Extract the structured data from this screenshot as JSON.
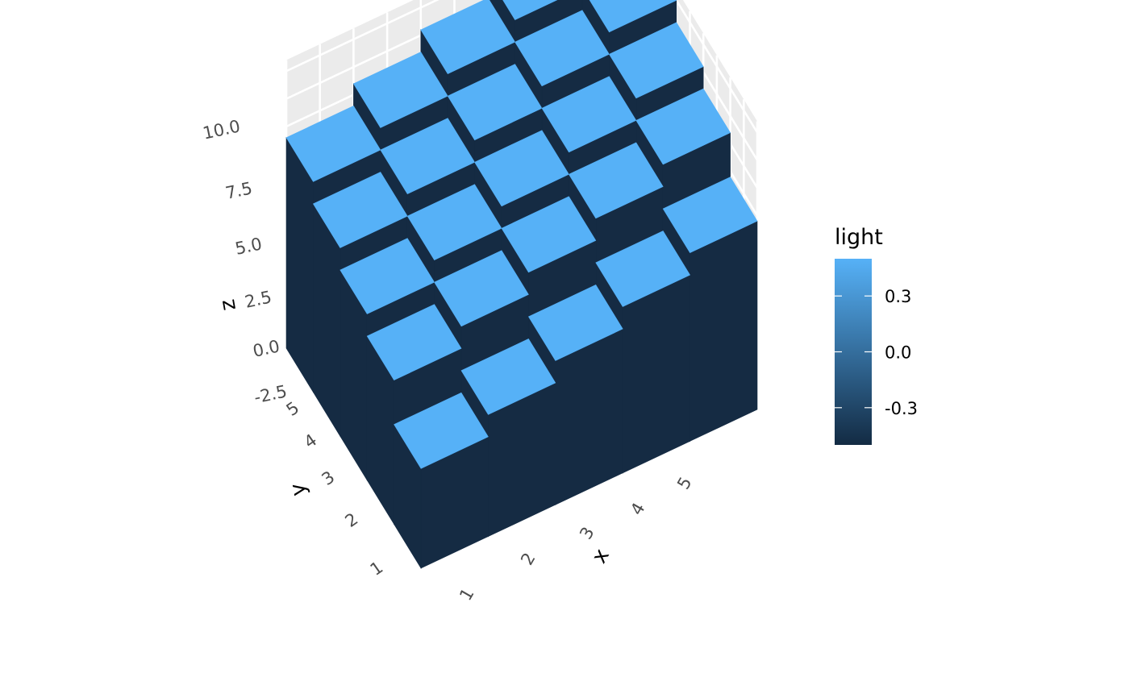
{
  "chart_data": {
    "type": "bar3d",
    "x": [
      1,
      2,
      3,
      4,
      5
    ],
    "y": [
      1,
      2,
      3,
      4,
      5
    ],
    "z": [
      [
        2,
        3,
        4,
        5,
        6
      ],
      [
        4,
        5,
        6,
        7,
        8
      ],
      [
        5,
        6,
        7,
        8,
        9
      ],
      [
        6,
        7,
        8,
        9,
        10
      ],
      [
        7,
        8,
        9,
        10,
        11
      ]
    ],
    "xlabel": "x",
    "ylabel": "y",
    "zlabel": "z",
    "x_ticks": [
      "1",
      "2",
      "3",
      "4",
      "5"
    ],
    "y_ticks": [
      "1",
      "2",
      "3",
      "4",
      "5"
    ],
    "z_ticks": [
      "-2.5",
      "0.0",
      "2.5",
      "5.0",
      "7.5",
      "10.0"
    ],
    "zlim": [
      -2.5,
      10.5
    ],
    "grid": true,
    "legend": {
      "title": "light",
      "ticks": [
        "0.3",
        "0.0",
        "-0.3"
      ],
      "range": [
        -0.5,
        0.5
      ],
      "low_color": "#132B43",
      "high_color": "#56B1F7",
      "placement": "right"
    },
    "colors": {
      "top_face": "#56B1F7",
      "side_face": "#152B43",
      "panel": "#EBEBEB",
      "grid": "#FFFFFF"
    }
  }
}
